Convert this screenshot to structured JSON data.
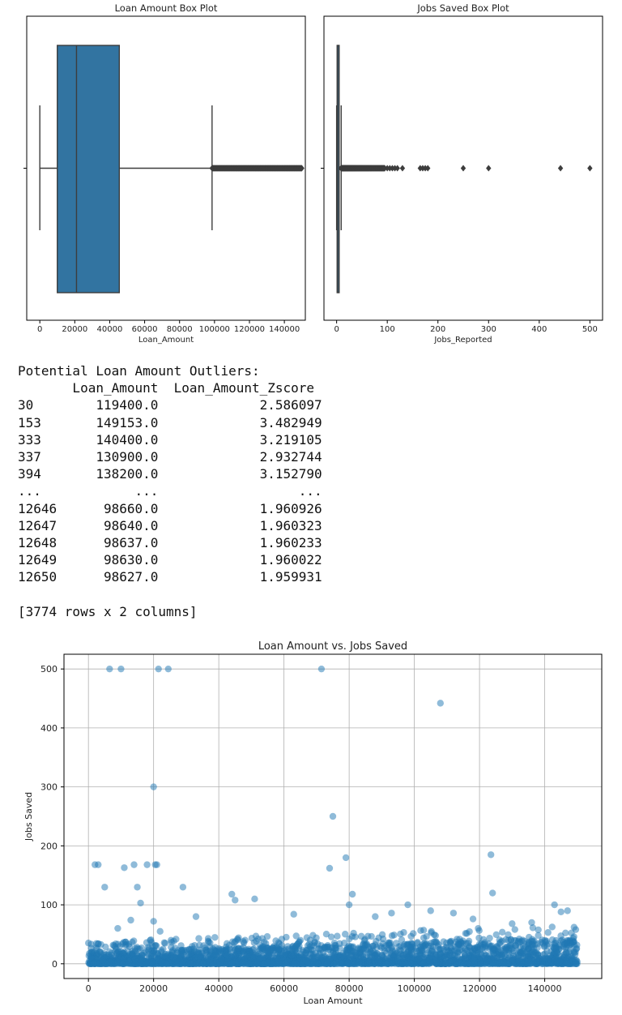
{
  "chart_data": [
    {
      "type": "box",
      "title": "Loan Amount Box Plot",
      "xlabel": "Loan_Amount",
      "xlim": [
        -7500,
        152000
      ],
      "xticks": [
        0,
        20000,
        40000,
        60000,
        80000,
        100000,
        120000,
        140000
      ],
      "box": {
        "whisker_low": 0,
        "q1": 10000,
        "median": 21000,
        "q3": 45500,
        "whisker_high": 98600
      },
      "outlier_range": [
        98600,
        150000
      ],
      "color": "#3274a1"
    },
    {
      "type": "box",
      "title": "Jobs Saved Box Plot",
      "xlabel": "Jobs_Reported",
      "xlim": [
        -25,
        525
      ],
      "xticks": [
        0,
        100,
        200,
        300,
        400,
        500
      ],
      "box": {
        "whisker_low": 0,
        "q1": 1,
        "median": 2,
        "q3": 4,
        "whisker_high": 9
      },
      "outlier_range": [
        9,
        95
      ],
      "outliers": [
        100,
        105,
        110,
        115,
        120,
        130,
        165,
        170,
        175,
        180,
        250,
        300,
        442,
        500
      ],
      "color": "#3274a1"
    },
    {
      "type": "scatter",
      "title": "Loan Amount vs. Jobs Saved",
      "xlabel": "Loan Amount",
      "ylabel": "Jobs Saved",
      "xlim": [
        -7500,
        157500
      ],
      "ylim": [
        -25,
        525
      ],
      "xticks": [
        0,
        20000,
        40000,
        60000,
        80000,
        100000,
        120000,
        140000
      ],
      "yticks": [
        0,
        100,
        200,
        300,
        400,
        500
      ],
      "grid": true,
      "color": "#1f77b4",
      "highlighted_points": [
        [
          6500,
          500
        ],
        [
          10000,
          500
        ],
        [
          21500,
          500
        ],
        [
          24500,
          500
        ],
        [
          71500,
          500
        ],
        [
          108000,
          442
        ],
        [
          20000,
          300
        ],
        [
          75000,
          250
        ],
        [
          123500,
          185
        ],
        [
          79000,
          180
        ],
        [
          2000,
          168
        ],
        [
          3000,
          168
        ],
        [
          14000,
          168
        ],
        [
          18000,
          168
        ],
        [
          20500,
          168
        ],
        [
          21000,
          168
        ],
        [
          11000,
          163
        ],
        [
          74000,
          162
        ],
        [
          5000,
          130
        ],
        [
          15000,
          130
        ],
        [
          29000,
          130
        ],
        [
          44000,
          118
        ],
        [
          81000,
          118
        ],
        [
          124000,
          120
        ],
        [
          51000,
          110
        ],
        [
          45000,
          108
        ],
        [
          16000,
          103
        ],
        [
          80000,
          100
        ],
        [
          98000,
          100
        ],
        [
          143000,
          100
        ],
        [
          13000,
          74
        ],
        [
          20000,
          72
        ],
        [
          33000,
          80
        ],
        [
          9000,
          60
        ],
        [
          22000,
          55
        ],
        [
          63000,
          84
        ],
        [
          105000,
          90
        ],
        [
          112000,
          86
        ],
        [
          118000,
          76
        ],
        [
          145000,
          88
        ],
        [
          147000,
          90
        ],
        [
          130000,
          68
        ],
        [
          136000,
          70
        ],
        [
          149000,
          62
        ],
        [
          88000,
          80
        ],
        [
          93000,
          86
        ]
      ]
    }
  ],
  "output": {
    "heading": "Potential Loan Amount Outliers:",
    "columns": [
      "Loan_Amount",
      "Loan_Amount_Zscore"
    ],
    "rows": [
      [
        "30",
        "119400.0",
        "2.586097"
      ],
      [
        "153",
        "149153.0",
        "3.482949"
      ],
      [
        "333",
        "140400.0",
        "3.219105"
      ],
      [
        "337",
        "130900.0",
        "2.932744"
      ],
      [
        "394",
        "138200.0",
        "3.152790"
      ],
      [
        "...",
        "...",
        "..."
      ],
      [
        "12646",
        "98660.0",
        "1.960926"
      ],
      [
        "12647",
        "98640.0",
        "1.960323"
      ],
      [
        "12648",
        "98637.0",
        "1.960233"
      ],
      [
        "12649",
        "98630.0",
        "1.960022"
      ],
      [
        "12650",
        "98627.0",
        "1.959931"
      ]
    ],
    "footer": "[3774 rows x 2 columns]"
  }
}
